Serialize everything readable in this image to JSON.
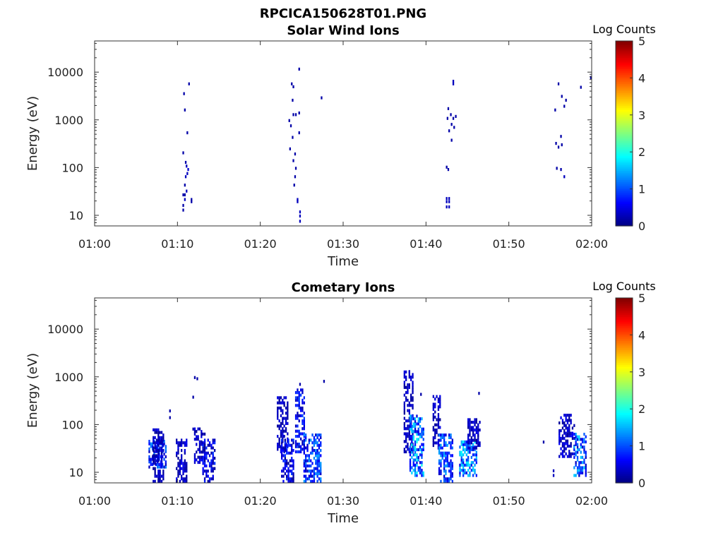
{
  "figure": {
    "title": "RPCICA150628T01.PNG"
  },
  "chart_data": [
    {
      "type": "heatmap",
      "title": "Solar Wind Ions",
      "xlabel": "Time",
      "ylabel": "Energy (eV)",
      "x_ticks": [
        "01:00",
        "01:10",
        "01:20",
        "01:30",
        "01:40",
        "01:50",
        "02:00"
      ],
      "x_range": [
        "01:00",
        "02:00"
      ],
      "y_scale": "log",
      "y_ticks": [
        "10",
        "100",
        "1000",
        "10000"
      ],
      "y_range": [
        6,
        45000
      ],
      "colorbar": {
        "label": "Log Counts",
        "range": [
          0,
          5
        ],
        "ticks": [
          "0",
          "1",
          "2",
          "3",
          "4",
          "5"
        ],
        "colormap": "jet"
      },
      "cells": [
        {
          "t": 10.6,
          "e": 12,
          "v": 0.2
        },
        {
          "t": 10.6,
          "e": 15,
          "v": 0.2
        },
        {
          "t": 10.8,
          "e": 20,
          "v": 0.3
        },
        {
          "t": 10.8,
          "e": 25,
          "v": 0.2
        },
        {
          "t": 10.6,
          "e": 25,
          "v": 0.2
        },
        {
          "t": 11.6,
          "e": 18,
          "v": 0.2
        },
        {
          "t": 11.6,
          "e": 20,
          "v": 0.2
        },
        {
          "t": 11.0,
          "e": 30,
          "v": 0.3
        },
        {
          "t": 10.8,
          "e": 40,
          "v": 0.2
        },
        {
          "t": 10.9,
          "e": 60,
          "v": 0.3
        },
        {
          "t": 11.1,
          "e": 70,
          "v": 0.3
        },
        {
          "t": 11.2,
          "e": 85,
          "v": 0.4
        },
        {
          "t": 11.0,
          "e": 100,
          "v": 0.3
        },
        {
          "t": 10.9,
          "e": 120,
          "v": 0.2
        },
        {
          "t": 10.6,
          "e": 190,
          "v": 0.2
        },
        {
          "t": 11.1,
          "e": 500,
          "v": 0.2
        },
        {
          "t": 10.8,
          "e": 1500,
          "v": 0.2
        },
        {
          "t": 10.7,
          "e": 3300,
          "v": 0.2
        },
        {
          "t": 11.3,
          "e": 5300,
          "v": 0.2
        },
        {
          "t": 24.7,
          "e": 7,
          "v": 0.3
        },
        {
          "t": 24.7,
          "e": 9,
          "v": 0.3
        },
        {
          "t": 24.7,
          "e": 11,
          "v": 0.3
        },
        {
          "t": 24.4,
          "e": 18,
          "v": 0.3
        },
        {
          "t": 24.4,
          "e": 20,
          "v": 0.3
        },
        {
          "t": 24.0,
          "e": 40,
          "v": 0.2
        },
        {
          "t": 24.1,
          "e": 60,
          "v": 0.2
        },
        {
          "t": 24.2,
          "e": 90,
          "v": 0.2
        },
        {
          "t": 23.9,
          "e": 130,
          "v": 0.2
        },
        {
          "t": 24.1,
          "e": 180,
          "v": 0.2
        },
        {
          "t": 23.5,
          "e": 230,
          "v": 0.2
        },
        {
          "t": 23.8,
          "e": 400,
          "v": 0.2
        },
        {
          "t": 24.6,
          "e": 500,
          "v": 0.2
        },
        {
          "t": 23.6,
          "e": 700,
          "v": 0.2
        },
        {
          "t": 23.4,
          "e": 900,
          "v": 0.2
        },
        {
          "t": 23.9,
          "e": 1200,
          "v": 0.2
        },
        {
          "t": 24.2,
          "e": 1200,
          "v": 0.2
        },
        {
          "t": 24.6,
          "e": 1300,
          "v": 0.2
        },
        {
          "t": 23.8,
          "e": 2400,
          "v": 0.2
        },
        {
          "t": 23.9,
          "e": 4600,
          "v": 0.2
        },
        {
          "t": 23.7,
          "e": 5300,
          "v": 0.2
        },
        {
          "t": 24.6,
          "e": 10800,
          "v": 0.2
        },
        {
          "t": 27.3,
          "e": 2700,
          "v": 0.2
        },
        {
          "t": 42.4,
          "e": 14,
          "v": 0.3
        },
        {
          "t": 42.4,
          "e": 18,
          "v": 0.3
        },
        {
          "t": 42.4,
          "e": 21,
          "v": 0.3
        },
        {
          "t": 42.7,
          "e": 14,
          "v": 0.3
        },
        {
          "t": 42.7,
          "e": 18,
          "v": 0.3
        },
        {
          "t": 42.7,
          "e": 21,
          "v": 0.3
        },
        {
          "t": 42.6,
          "e": 85,
          "v": 0.2
        },
        {
          "t": 42.4,
          "e": 95,
          "v": 0.2
        },
        {
          "t": 43.0,
          "e": 350,
          "v": 0.2
        },
        {
          "t": 42.7,
          "e": 550,
          "v": 0.2
        },
        {
          "t": 43.3,
          "e": 650,
          "v": 0.2
        },
        {
          "t": 43.0,
          "e": 750,
          "v": 0.2
        },
        {
          "t": 42.5,
          "e": 1000,
          "v": 0.2
        },
        {
          "t": 43.2,
          "e": 1000,
          "v": 0.2
        },
        {
          "t": 43.5,
          "e": 1100,
          "v": 0.2
        },
        {
          "t": 42.9,
          "e": 1200,
          "v": 0.2
        },
        {
          "t": 42.6,
          "e": 1600,
          "v": 0.2
        },
        {
          "t": 43.2,
          "e": 5300,
          "v": 0.3
        },
        {
          "t": 43.2,
          "e": 6000,
          "v": 0.3
        },
        {
          "t": 55.7,
          "e": 90,
          "v": 0.2
        },
        {
          "t": 56.2,
          "e": 85,
          "v": 0.2
        },
        {
          "t": 56.6,
          "e": 60,
          "v": 0.3
        },
        {
          "t": 55.9,
          "e": 250,
          "v": 0.2
        },
        {
          "t": 56.3,
          "e": 280,
          "v": 0.2
        },
        {
          "t": 55.6,
          "e": 300,
          "v": 0.2
        },
        {
          "t": 56.2,
          "e": 420,
          "v": 0.2
        },
        {
          "t": 55.5,
          "e": 1500,
          "v": 0.2
        },
        {
          "t": 56.6,
          "e": 1800,
          "v": 0.2
        },
        {
          "t": 56.8,
          "e": 2400,
          "v": 0.2
        },
        {
          "t": 56.3,
          "e": 2900,
          "v": 0.2
        },
        {
          "t": 55.9,
          "e": 5300,
          "v": 0.2
        },
        {
          "t": 58.6,
          "e": 4500,
          "v": 0.2
        },
        {
          "t": 59.8,
          "e": 7200,
          "v": 0.2
        }
      ]
    },
    {
      "type": "heatmap",
      "title": "Cometary Ions",
      "xlabel": "Time",
      "ylabel": "Energy (eV)",
      "x_ticks": [
        "01:00",
        "01:10",
        "01:20",
        "01:30",
        "01:40",
        "01:50",
        "02:00"
      ],
      "x_range": [
        "01:00",
        "02:00"
      ],
      "y_scale": "log",
      "y_ticks": [
        "10",
        "100",
        "1000",
        "10000"
      ],
      "y_range": [
        6,
        45000
      ],
      "colorbar": {
        "label": "Log Counts",
        "range": [
          0,
          5
        ],
        "ticks": [
          "0",
          "1",
          "2",
          "3",
          "4",
          "5"
        ],
        "colormap": "jet"
      },
      "clusters": [
        {
          "t0": 6.5,
          "t1": 8.6,
          "e_lo": 12,
          "e_hi": 45,
          "v_min": 0.3,
          "v_max": 1.3
        },
        {
          "t0": 7.0,
          "t1": 8.2,
          "e_lo": 6,
          "e_hi": 80,
          "v_min": 0.1,
          "v_max": 0.5
        },
        {
          "t0": 9.8,
          "t1": 11.0,
          "e_lo": 6,
          "e_hi": 45,
          "v_min": 0.1,
          "v_max": 0.6
        },
        {
          "t0": 12.0,
          "t1": 13.2,
          "e_lo": 15,
          "e_hi": 80,
          "v_min": 0.1,
          "v_max": 0.6
        },
        {
          "t0": 13.0,
          "t1": 14.5,
          "e_lo": 6,
          "e_hi": 45,
          "v_min": 0.1,
          "v_max": 0.9
        },
        {
          "t0": 22.0,
          "t1": 23.2,
          "e_lo": 25,
          "e_hi": 350,
          "v_min": 0.1,
          "v_max": 0.5
        },
        {
          "t0": 22.5,
          "t1": 24.0,
          "e_lo": 6,
          "e_hi": 45,
          "v_min": 0.1,
          "v_max": 0.9
        },
        {
          "t0": 24.2,
          "t1": 25.3,
          "e_lo": 25,
          "e_hi": 500,
          "v_min": 0.2,
          "v_max": 1.0
        },
        {
          "t0": 25.2,
          "t1": 27.2,
          "e_lo": 6,
          "e_hi": 60,
          "v_min": 0.3,
          "v_max": 1.4
        },
        {
          "t0": 37.3,
          "t1": 38.5,
          "e_lo": 25,
          "e_hi": 1300,
          "v_min": 0.1,
          "v_max": 0.5
        },
        {
          "t0": 38.0,
          "t1": 39.8,
          "e_lo": 8,
          "e_hi": 150,
          "v_min": 0.4,
          "v_max": 2.0
        },
        {
          "t0": 40.8,
          "t1": 41.8,
          "e_lo": 30,
          "e_hi": 400,
          "v_min": 0.1,
          "v_max": 0.5
        },
        {
          "t0": 41.5,
          "t1": 43.2,
          "e_lo": 6,
          "e_hi": 60,
          "v_min": 0.3,
          "v_max": 1.5
        },
        {
          "t0": 44.0,
          "t1": 46.2,
          "e_lo": 8,
          "e_hi": 45,
          "v_min": 0.5,
          "v_max": 1.9
        },
        {
          "t0": 45.0,
          "t1": 46.5,
          "e_lo": 30,
          "e_hi": 130,
          "v_min": 0.1,
          "v_max": 0.5
        },
        {
          "t0": 56.0,
          "t1": 58.0,
          "e_lo": 20,
          "e_hi": 150,
          "v_min": 0.1,
          "v_max": 0.6
        },
        {
          "t0": 57.8,
          "t1": 59.4,
          "e_lo": 8,
          "e_hi": 60,
          "v_min": 0.3,
          "v_max": 1.7
        }
      ],
      "cells": [
        {
          "t": 9.0,
          "e": 180,
          "v": 0.2
        },
        {
          "t": 9.0,
          "e": 130,
          "v": 0.2
        },
        {
          "t": 12.0,
          "e": 900,
          "v": 0.2
        },
        {
          "t": 12.3,
          "e": 850,
          "v": 0.2
        },
        {
          "t": 11.8,
          "e": 350,
          "v": 0.2
        },
        {
          "t": 11.8,
          "e": 75,
          "v": 0.2
        },
        {
          "t": 24.7,
          "e": 650,
          "v": 0.2
        },
        {
          "t": 27.6,
          "e": 750,
          "v": 0.2
        },
        {
          "t": 37.9,
          "e": 1200,
          "v": 0.3
        },
        {
          "t": 39.3,
          "e": 400,
          "v": 0.2
        },
        {
          "t": 46.3,
          "e": 420,
          "v": 0.2
        },
        {
          "t": 46.2,
          "e": 55,
          "v": 0.2
        },
        {
          "t": 54.1,
          "e": 40,
          "v": 0.2
        },
        {
          "t": 55.3,
          "e": 8,
          "v": 0.3
        },
        {
          "t": 55.3,
          "e": 10,
          "v": 0.3
        },
        {
          "t": 57.0,
          "e": 60,
          "v": 0.2
        }
      ]
    }
  ]
}
